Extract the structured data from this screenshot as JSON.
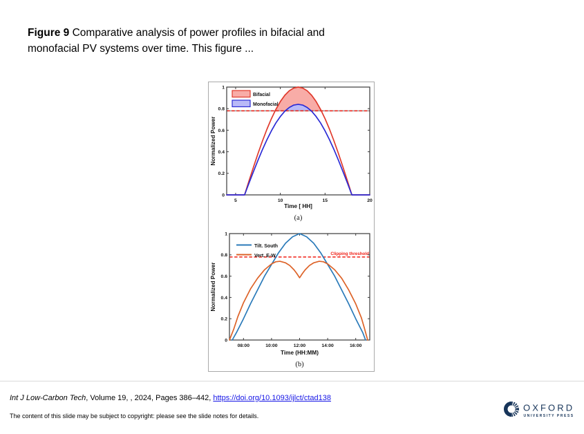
{
  "slide": {
    "caption": {
      "label": "Figure 9",
      "line1_rest": " Comparative analysis of power profiles in bifacial and",
      "line2": "monofacial PV systems over time. This figure ..."
    },
    "footer": {
      "journal_italic": "Int J Low-Carbon Tech",
      "citation_rest": ", Volume 19, , 2024, Pages 386–442, ",
      "doi_link": "https://doi.org/10.1093/ijlct/ctad138",
      "copyright_note": "The content of this slide may be subject to copyright: please see the slide notes for details."
    },
    "logo": {
      "wordmark": "OXFORD",
      "subtext": "UNIVERSITY PRESS",
      "color": "#17355a"
    }
  },
  "chart_data": [
    {
      "id": "a",
      "type": "line",
      "title": "(a)",
      "xlabel": "Time [ HH]",
      "ylabel": "Normalized Power",
      "xlim": [
        4,
        20
      ],
      "ylim": [
        0,
        1
      ],
      "xticks": [
        5,
        10,
        15,
        20
      ],
      "xtick_labels": [
        "5",
        "10",
        "15",
        "20"
      ],
      "yticks": [
        0,
        0.2,
        0.4,
        0.6,
        0.8,
        1
      ],
      "ytick_labels": [
        "0",
        "0.2",
        "0.4",
        "0.6",
        "0.8",
        "1"
      ],
      "grid": false,
      "legend_position": "top-left",
      "threshold": {
        "y": 0.78,
        "color": "#f01e14",
        "underlay": "#9c9c9c"
      },
      "legend": [
        {
          "label": "Bifacial",
          "swatch": "patch",
          "fill": "rgba(240,70,60,0.45)",
          "stroke": "#e0392b"
        },
        {
          "label": "Monofacial",
          "swatch": "patch",
          "fill": "rgba(80,80,235,0.40)",
          "stroke": "#2b2bd5"
        }
      ],
      "series": [
        {
          "name": "Bifacial",
          "color": "#e0392b",
          "x": [
            4,
            4.5,
            5,
            5.5,
            6,
            6.5,
            7,
            7.5,
            8,
            8.5,
            9,
            9.5,
            10,
            10.5,
            11,
            11.5,
            12,
            12.5,
            13,
            13.5,
            14,
            14.5,
            15,
            15.5,
            16,
            16.5,
            17,
            17.5,
            18,
            18.5,
            19,
            19.5,
            20
          ],
          "y": [
            0,
            0,
            0,
            0,
            0,
            0.131,
            0.259,
            0.383,
            0.5,
            0.609,
            0.707,
            0.793,
            0.866,
            0.924,
            0.966,
            0.991,
            1,
            0.991,
            0.966,
            0.924,
            0.866,
            0.793,
            0.707,
            0.609,
            0.5,
            0.383,
            0.259,
            0.131,
            0,
            0,
            0,
            0,
            0
          ]
        },
        {
          "name": "Monofacial",
          "color": "#2b2bd5",
          "x": [
            4,
            4.5,
            5,
            5.5,
            6,
            6.5,
            7,
            7.5,
            8,
            8.5,
            9,
            9.5,
            10,
            10.5,
            11,
            11.5,
            12,
            12.5,
            13,
            13.5,
            14,
            14.5,
            15,
            15.5,
            16,
            16.5,
            17,
            17.5,
            18,
            18.5,
            19,
            19.5,
            20
          ],
          "y": [
            0,
            0,
            0,
            0,
            0,
            0.11,
            0.217,
            0.321,
            0.42,
            0.511,
            0.594,
            0.667,
            0.727,
            0.776,
            0.811,
            0.833,
            0.84,
            0.833,
            0.811,
            0.776,
            0.727,
            0.667,
            0.594,
            0.511,
            0.42,
            0.321,
            0.217,
            0.11,
            0,
            0,
            0,
            0,
            0
          ]
        }
      ],
      "fills": [
        {
          "upper": "Bifacial",
          "lower_series": "Monofacial",
          "lower_min": "threshold",
          "color": "rgba(240,70,60,0.45)"
        },
        {
          "upper": "Monofacial",
          "lower_series": null,
          "lower_min": "threshold",
          "color": "rgba(80,80,235,0.40)"
        }
      ]
    },
    {
      "id": "b",
      "type": "line",
      "title": "(b)",
      "xlabel": "Time (HH:MM)",
      "ylabel": "Normalized Power",
      "xlim": [
        7,
        17
      ],
      "ylim": [
        0,
        1
      ],
      "xticks": [
        8,
        10,
        12,
        14,
        16
      ],
      "xtick_labels": [
        "08:00",
        "10:00",
        "12:00",
        "14:00",
        "16:00"
      ],
      "yticks": [
        0,
        0.2,
        0.4,
        0.6,
        0.8,
        1
      ],
      "ytick_labels": [
        "0",
        "0.2",
        "0.4",
        "0.6",
        "0.8",
        "1"
      ],
      "grid": false,
      "legend_position": "top-left",
      "threshold": {
        "y": 0.78,
        "color": "#f01e14",
        "label": "Clipping threshold"
      },
      "legend": [
        {
          "label": "Tilt. South",
          "swatch": "line",
          "stroke": "#2a7ab9"
        },
        {
          "label": "Vert. E-W",
          "swatch": "line",
          "stroke": "#dd6227"
        }
      ],
      "series": [
        {
          "name": "Tilt. South",
          "color": "#2a7ab9",
          "x": [
            7.2,
            7.5,
            8,
            8.5,
            9,
            9.5,
            10,
            10.5,
            11,
            11.5,
            12,
            12.5,
            13,
            13.5,
            14,
            14.5,
            15,
            15.5,
            16,
            16.5,
            16.7
          ],
          "y": [
            0,
            0.07,
            0.2,
            0.34,
            0.47,
            0.6,
            0.71,
            0.82,
            0.91,
            0.97,
            1,
            0.97,
            0.91,
            0.82,
            0.71,
            0.6,
            0.47,
            0.34,
            0.2,
            0.07,
            0
          ]
        },
        {
          "name": "Vert. E-W",
          "color": "#dd6227",
          "x": [
            7,
            7.3,
            7.6,
            8,
            8.5,
            9,
            9.5,
            10,
            10.3,
            10.6,
            11,
            11.3,
            11.6,
            11.8,
            12,
            12.2,
            12.4,
            12.7,
            13,
            13.4,
            13.7,
            14,
            14.5,
            15,
            15.5,
            16,
            16.4,
            16.6,
            16.85
          ],
          "y": [
            0,
            0.1,
            0.22,
            0.35,
            0.48,
            0.58,
            0.66,
            0.715,
            0.735,
            0.74,
            0.725,
            0.7,
            0.66,
            0.625,
            0.585,
            0.625,
            0.66,
            0.7,
            0.725,
            0.74,
            0.735,
            0.715,
            0.66,
            0.58,
            0.47,
            0.34,
            0.21,
            0.12,
            0
          ]
        }
      ]
    }
  ]
}
